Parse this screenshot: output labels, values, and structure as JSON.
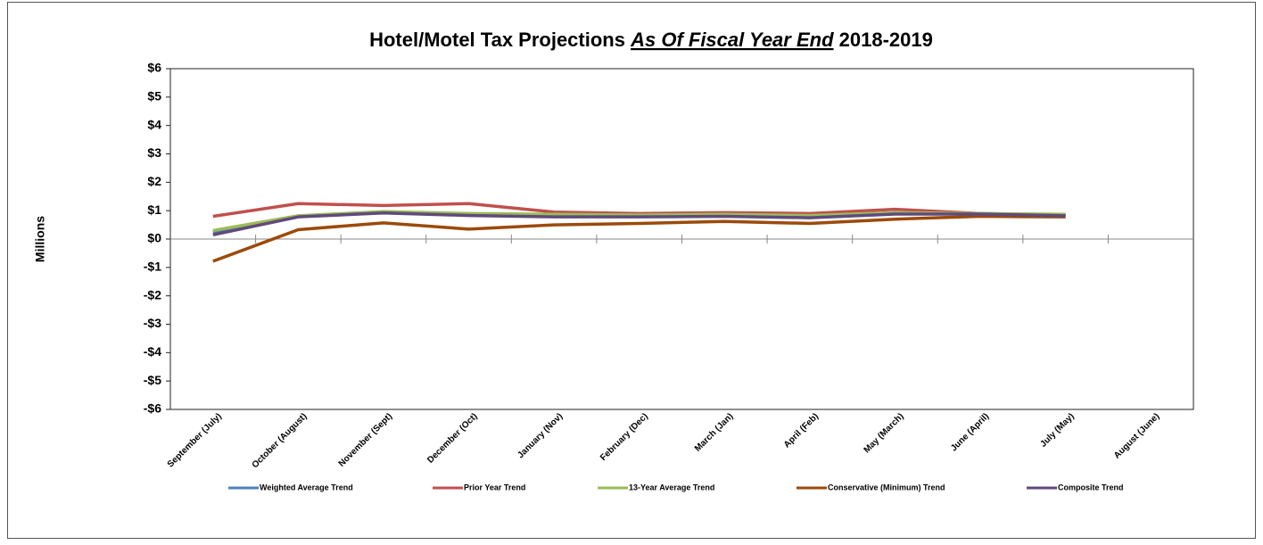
{
  "chart_data": {
    "type": "line",
    "title": [
      "Hotel/Motel Tax Projections",
      "As Of Fiscal Year End",
      "2018-2019"
    ],
    "y_label": "Millions",
    "categories": [
      "September (July)",
      "October (August)",
      "November (Sept)",
      "December (Oct)",
      "January (Nov)",
      "February (Dec)",
      "March (Jan)",
      "April (Feb)",
      "May (March)",
      "June (April)",
      "July (May)",
      "August (June)"
    ],
    "ylim": [
      -6,
      6
    ],
    "yticks": [
      {
        "value": 6,
        "label": "$6"
      },
      {
        "value": 5,
        "label": "$5"
      },
      {
        "value": 4,
        "label": "$4"
      },
      {
        "value": 3,
        "label": "$3"
      },
      {
        "value": 2,
        "label": "$2"
      },
      {
        "value": 1,
        "label": "$1"
      },
      {
        "value": 0,
        "label": "$0"
      },
      {
        "value": -1,
        "label": "-$1"
      },
      {
        "value": -2,
        "label": "-$2"
      },
      {
        "value": -3,
        "label": "-$3"
      },
      {
        "value": -4,
        "label": "-$4"
      },
      {
        "value": -5,
        "label": "-$5"
      },
      {
        "value": -6,
        "label": "-$6"
      }
    ],
    "legend": "bottom",
    "series": [
      {
        "name": "Weighted Average Trend",
        "color": "#4f81bd",
        "values": [
          0.25,
          0.8,
          0.95,
          0.88,
          0.85,
          0.83,
          0.85,
          0.8,
          0.92,
          0.9,
          0.85,
          null
        ]
      },
      {
        "name": "Prior Year Trend",
        "color": "#c0504d",
        "values": [
          0.8,
          1.25,
          1.18,
          1.25,
          0.95,
          0.9,
          0.93,
          0.9,
          1.05,
          0.9,
          0.82,
          null
        ]
      },
      {
        "name": "13-Year Average Trend",
        "color": "#9bbb59",
        "values": [
          0.3,
          0.82,
          0.97,
          0.9,
          0.87,
          0.85,
          0.87,
          0.83,
          0.93,
          0.9,
          0.87,
          null
        ]
      },
      {
        "name": "Conservative (Minimum) Trend",
        "color": "#9c4a0a",
        "values": [
          -0.78,
          0.33,
          0.57,
          0.35,
          0.5,
          0.55,
          0.62,
          0.55,
          0.7,
          0.8,
          0.78,
          null
        ]
      },
      {
        "name": "Composite Trend",
        "color": "#604a7b",
        "values": [
          0.15,
          0.78,
          0.92,
          0.83,
          0.78,
          0.78,
          0.8,
          0.75,
          0.88,
          0.88,
          0.82,
          null
        ]
      }
    ]
  }
}
